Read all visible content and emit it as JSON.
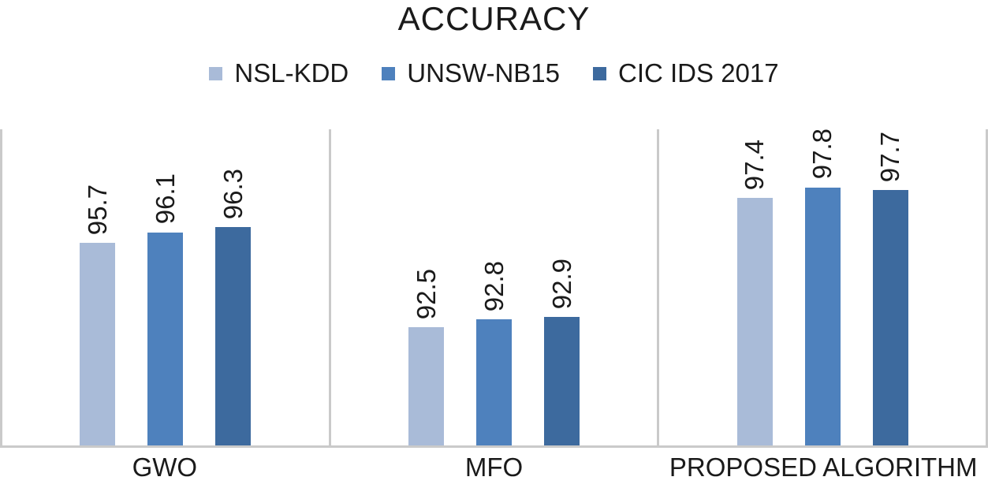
{
  "chart_data": {
    "type": "bar",
    "title": "ACCURACY",
    "categories": [
      "GWO",
      "MFO",
      "PROPOSED ALGORITHM"
    ],
    "series": [
      {
        "name": "NSL-KDD",
        "color": "#A9BBD8",
        "values": [
          95.7,
          92.5,
          97.4
        ]
      },
      {
        "name": "UNSW-NB15",
        "color": "#4E81BD",
        "values": [
          96.1,
          92.8,
          97.8
        ]
      },
      {
        "name": "CIC IDS 2017",
        "color": "#3D6A9E",
        "values": [
          96.3,
          92.9,
          97.7
        ]
      }
    ],
    "ylim": [
      88,
      100
    ],
    "value_axis_visible": false,
    "grid": false,
    "legend_position": "top",
    "data_labels": "rotated-90-above-bar",
    "data_label_format": "one-decimal"
  },
  "style": {
    "axis_line_color": "#CACACA",
    "text_color": "#1A1A1A",
    "background": "#FFFFFF"
  }
}
